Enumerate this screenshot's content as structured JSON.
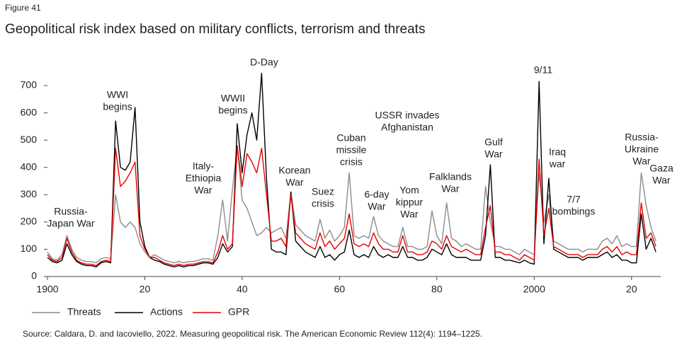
{
  "figure_label": "Figure 41",
  "chart_data": {
    "type": "line",
    "title": "Geopolitical risk index based on military conflicts, terrorism and threats",
    "source": "Source: Caldara, D. and Iacoviello, 2022. Measuring geopolitical risk. The American Economic Review 112(4): 1194–1225.",
    "x": [
      1900,
      1901,
      1902,
      1903,
      1904,
      1905,
      1906,
      1907,
      1908,
      1909,
      1910,
      1911,
      1912,
      1913,
      1914,
      1915,
      1916,
      1917,
      1918,
      1919,
      1920,
      1921,
      1922,
      1923,
      1924,
      1925,
      1926,
      1927,
      1928,
      1929,
      1930,
      1931,
      1932,
      1933,
      1934,
      1935,
      1936,
      1937,
      1938,
      1939,
      1940,
      1941,
      1942,
      1943,
      1944,
      1945,
      1946,
      1947,
      1948,
      1949,
      1950,
      1951,
      1952,
      1953,
      1954,
      1955,
      1956,
      1957,
      1958,
      1959,
      1960,
      1961,
      1962,
      1963,
      1964,
      1965,
      1966,
      1967,
      1968,
      1969,
      1970,
      1971,
      1972,
      1973,
      1974,
      1975,
      1976,
      1977,
      1978,
      1979,
      1980,
      1981,
      1982,
      1983,
      1984,
      1985,
      1986,
      1987,
      1988,
      1989,
      1990,
      1991,
      1992,
      1993,
      1994,
      1995,
      1996,
      1997,
      1998,
      1999,
      2000,
      2001,
      2002,
      2003,
      2004,
      2005,
      2006,
      2007,
      2008,
      2009,
      2010,
      2011,
      2012,
      2013,
      2014,
      2015,
      2016,
      2017,
      2018,
      2019,
      2020,
      2021,
      2022,
      2023,
      2024,
      2025
    ],
    "series": [
      {
        "name": "Threats",
        "color": "#8c8c8c",
        "values": [
          90,
          65,
          60,
          80,
          150,
          100,
          70,
          60,
          55,
          55,
          50,
          65,
          70,
          65,
          300,
          200,
          180,
          200,
          180,
          120,
          90,
          70,
          80,
          70,
          60,
          55,
          50,
          55,
          50,
          55,
          55,
          60,
          65,
          65,
          60,
          150,
          280,
          130,
          320,
          480,
          280,
          250,
          200,
          150,
          160,
          180,
          160,
          170,
          180,
          140,
          310,
          190,
          170,
          150,
          140,
          130,
          210,
          140,
          170,
          130,
          150,
          180,
          380,
          150,
          140,
          150,
          140,
          220,
          150,
          130,
          120,
          110,
          110,
          180,
          110,
          110,
          100,
          100,
          110,
          240,
          150,
          120,
          270,
          140,
          130,
          110,
          120,
          110,
          100,
          100,
          330,
          200,
          110,
          110,
          100,
          100,
          90,
          80,
          100,
          90,
          80,
          380,
          200,
          300,
          130,
          120,
          110,
          100,
          100,
          100,
          90,
          100,
          100,
          100,
          130,
          140,
          120,
          150,
          110,
          120,
          110,
          110,
          380,
          260,
          180,
          130
        ]
      },
      {
        "name": "Actions",
        "color": "#000000",
        "values": [
          70,
          55,
          50,
          60,
          120,
          80,
          55,
          45,
          40,
          40,
          35,
          50,
          55,
          50,
          570,
          400,
          390,
          420,
          620,
          200,
          110,
          70,
          60,
          55,
          45,
          40,
          35,
          40,
          35,
          40,
          40,
          45,
          50,
          50,
          45,
          70,
          120,
          90,
          110,
          560,
          380,
          520,
          600,
          500,
          745,
          360,
          100,
          90,
          90,
          80,
          310,
          130,
          110,
          90,
          80,
          70,
          110,
          70,
          80,
          60,
          80,
          90,
          170,
          80,
          70,
          80,
          70,
          110,
          80,
          70,
          80,
          70,
          70,
          110,
          70,
          70,
          60,
          60,
          70,
          100,
          90,
          80,
          120,
          80,
          70,
          70,
          70,
          60,
          60,
          60,
          150,
          410,
          70,
          70,
          60,
          60,
          55,
          50,
          60,
          50,
          45,
          715,
          120,
          360,
          100,
          90,
          80,
          70,
          70,
          70,
          60,
          70,
          70,
          70,
          80,
          90,
          70,
          80,
          60,
          60,
          50,
          50,
          230,
          100,
          140,
          90
        ]
      },
      {
        "name": "GPR",
        "color": "#e60000",
        "values": [
          80,
          60,
          55,
          70,
          140,
          90,
          60,
          50,
          45,
          45,
          40,
          55,
          60,
          55,
          470,
          330,
          350,
          380,
          420,
          150,
          100,
          70,
          70,
          60,
          50,
          45,
          40,
          45,
          40,
          45,
          45,
          50,
          55,
          55,
          50,
          90,
          150,
          100,
          120,
          480,
          330,
          450,
          420,
          380,
          470,
          300,
          130,
          130,
          140,
          110,
          300,
          160,
          140,
          120,
          110,
          100,
          160,
          110,
          130,
          100,
          120,
          140,
          230,
          120,
          110,
          120,
          110,
          160,
          120,
          100,
          100,
          90,
          90,
          150,
          90,
          90,
          80,
          80,
          90,
          130,
          120,
          100,
          150,
          110,
          100,
          90,
          100,
          90,
          80,
          80,
          180,
          260,
          90,
          90,
          80,
          80,
          70,
          60,
          80,
          70,
          60,
          430,
          150,
          250,
          110,
          100,
          90,
          80,
          80,
          80,
          70,
          80,
          80,
          80,
          100,
          110,
          90,
          110,
          80,
          90,
          80,
          80,
          270,
          140,
          160,
          110
        ]
      }
    ],
    "xlim": [
      1900,
      2026
    ],
    "xticks": [
      1900,
      {
        "value": 1920,
        "label": "20"
      },
      {
        "value": 1940,
        "label": "40"
      },
      {
        "value": 1960,
        "label": "60"
      },
      {
        "value": 1980,
        "label": "80"
      },
      2000,
      {
        "value": 2020,
        "label": "20"
      }
    ],
    "ylim": [
      0,
      700
    ],
    "yticks": [
      0,
      100,
      200,
      300,
      400,
      500,
      600,
      700
    ],
    "grid": false,
    "legend": "bottom-left",
    "annotations": [
      {
        "lines": [
          "Russia-",
          "Japan War"
        ]
      },
      {
        "lines": [
          "WWI",
          "begins"
        ]
      },
      {
        "lines": [
          "WWII",
          "begins"
        ]
      },
      {
        "lines": [
          "D-Day"
        ]
      },
      {
        "lines": [
          "Italy-",
          "Ethiopia",
          "War"
        ]
      },
      {
        "lines": [
          "Korean",
          "War"
        ]
      },
      {
        "lines": [
          "Suez",
          "crisis"
        ]
      },
      {
        "lines": [
          "Cuban",
          "missile",
          "crisis"
        ]
      },
      {
        "lines": [
          "6-day",
          "War"
        ]
      },
      {
        "lines": [
          "Yom",
          "kippur",
          "War"
        ]
      },
      {
        "lines": [
          "USSR invades",
          "Afghanistan"
        ]
      },
      {
        "lines": [
          "Falklands",
          "War"
        ]
      },
      {
        "lines": [
          "Gulf",
          "War"
        ]
      },
      {
        "lines": [
          "9/11"
        ]
      },
      {
        "lines": [
          "Iraq",
          "war"
        ]
      },
      {
        "lines": [
          "7/7",
          "bombings"
        ]
      },
      {
        "lines": [
          "Russia-",
          "Ukraine",
          "War"
        ]
      },
      {
        "lines": [
          "Gaza",
          "War"
        ]
      }
    ]
  }
}
